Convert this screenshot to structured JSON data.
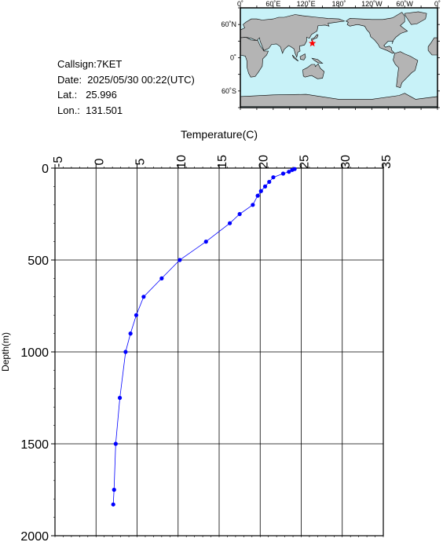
{
  "info": {
    "callsign": "Callsign:7KET",
    "date": "Date:  2025/05/30 00:22(UTC)",
    "lat": "Lat.:   25.996",
    "lon": "Lon.:  131.501"
  },
  "map": {
    "lon_labels": [
      "0˚",
      "60˚E",
      "120˚E",
      "180˚",
      "120˚W",
      "60˚W",
      "0˚"
    ],
    "lat_labels": [
      "60˚N",
      "0˚",
      "60˚S"
    ],
    "marker": {
      "lon": 131.501,
      "lat": 25.996,
      "color": "#ff0000"
    },
    "ocean_color": "#c8f2f8",
    "land_color": "#b4b4b4"
  },
  "chart_data": {
    "type": "line",
    "xlabel": "Temperature(C)",
    "ylabel": "Depth(m)",
    "xlim": [
      -5,
      35
    ],
    "ylim": [
      2000,
      0
    ],
    "x_ticks": [
      -5,
      0,
      5,
      10,
      15,
      20,
      25,
      30,
      35
    ],
    "y_ticks": [
      0,
      500,
      1000,
      1500,
      2000
    ],
    "grid": true,
    "color": "#0000ff",
    "series": [
      {
        "points": [
          [
            24.2,
            5
          ],
          [
            23.9,
            10
          ],
          [
            23.5,
            20
          ],
          [
            22.8,
            30
          ],
          [
            21.6,
            50
          ],
          [
            21.1,
            75
          ],
          [
            20.6,
            100
          ],
          [
            20.1,
            125
          ],
          [
            19.7,
            150
          ],
          [
            19.1,
            200
          ],
          [
            17.5,
            250
          ],
          [
            16.3,
            300
          ],
          [
            13.4,
            400
          ],
          [
            10.2,
            500
          ],
          [
            8.0,
            600
          ],
          [
            5.8,
            700
          ],
          [
            4.9,
            800
          ],
          [
            4.2,
            900
          ],
          [
            3.6,
            1000
          ],
          [
            2.9,
            1250
          ],
          [
            2.4,
            1500
          ],
          [
            2.2,
            1750
          ],
          [
            2.1,
            1830
          ]
        ]
      }
    ]
  }
}
